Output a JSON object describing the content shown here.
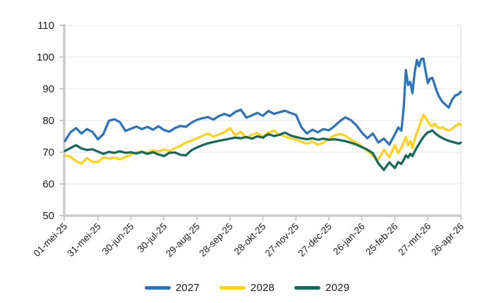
{
  "chart": {
    "background": "#ffffff",
    "axis_color": "#cccccc",
    "tick_color": "#c9c9c9",
    "grid_color": "#e4e4e4",
    "text_color": "#1c1c1c"
  },
  "chart_data": {
    "type": "line",
    "title": "",
    "xlabel": "",
    "ylabel": "",
    "grid": "horizontal",
    "legend_position": "bottom",
    "y_axis": {
      "min": 50,
      "max": 110,
      "ticks": [
        50,
        60,
        70,
        80,
        90,
        100,
        110
      ]
    },
    "x_axis": {
      "tick_labels": [
        "01-mei-25",
        "31-mei-25",
        "30-jun-25",
        "30-jul-25",
        "29-aug-25",
        "28-sep-25",
        "28-okt-25",
        "27-nov-25",
        "27-dec-25",
        "26-jan-26",
        "25-feb-26",
        "27-mrt-26",
        "26-apr-26"
      ],
      "tick_days": [
        0,
        30,
        60,
        90,
        120,
        150,
        180,
        210,
        240,
        270,
        300,
        330,
        360
      ],
      "unit": "days since 01-mei-25"
    },
    "x_days": [
      0,
      5,
      10,
      15,
      20,
      25,
      30,
      35,
      40,
      45,
      50,
      55,
      60,
      65,
      70,
      75,
      80,
      85,
      90,
      95,
      100,
      105,
      110,
      115,
      120,
      125,
      130,
      135,
      140,
      145,
      150,
      155,
      160,
      165,
      170,
      175,
      180,
      185,
      190,
      195,
      200,
      205,
      210,
      215,
      220,
      225,
      230,
      235,
      240,
      245,
      250,
      255,
      260,
      265,
      270,
      275,
      280,
      285,
      290,
      295,
      300,
      303,
      306,
      308,
      310,
      312,
      314,
      316,
      318,
      320,
      322,
      324,
      326,
      328,
      330,
      332,
      334,
      336,
      338,
      340,
      343,
      346,
      349,
      352,
      355,
      358,
      360
    ],
    "series": [
      {
        "name": "2027",
        "color": "#2E74BB",
        "values": [
          73.5,
          76.3,
          77.6,
          75.9,
          77.3,
          76.4,
          74.1,
          75.7,
          79.9,
          80.4,
          79.5,
          76.7,
          77.4,
          78.1,
          77.3,
          78.0,
          77.1,
          78.2,
          77.0,
          76.5,
          77.6,
          78.3,
          78.0,
          79.3,
          80.2,
          80.7,
          81.1,
          80.3,
          81.4,
          82.1,
          81.4,
          82.7,
          83.4,
          80.9,
          81.6,
          82.4,
          81.5,
          83.0,
          82.1,
          82.6,
          83.1,
          82.4,
          81.8,
          77.9,
          75.9,
          77.1,
          76.3,
          77.3,
          76.9,
          78.2,
          79.8,
          81.0,
          80.1,
          78.5,
          76.2,
          74.4,
          75.9,
          73.1,
          74.3,
          72.4,
          75.6,
          77.8,
          76.8,
          84.0,
          95.9,
          91.2,
          92.2,
          88.6,
          95.0,
          99.1,
          97.1,
          99.4,
          99.5,
          95.5,
          91.8,
          93.2,
          93.5,
          91.5,
          89.3,
          87.7,
          86.0,
          85.0,
          84.1,
          86.5,
          87.9,
          88.3,
          89.1
        ]
      },
      {
        "name": "2028",
        "color": "#FFD21F",
        "values": [
          69.0,
          68.6,
          67.2,
          66.4,
          68.2,
          67.0,
          66.9,
          68.4,
          68.0,
          68.3,
          67.8,
          68.5,
          69.3,
          69.9,
          70.3,
          69.8,
          70.6,
          70.2,
          70.9,
          70.4,
          71.3,
          72.0,
          73.1,
          73.6,
          74.4,
          75.2,
          75.9,
          74.9,
          75.6,
          76.3,
          77.6,
          75.4,
          76.4,
          74.6,
          75.5,
          76.1,
          74.9,
          76.3,
          76.8,
          75.6,
          75.0,
          74.4,
          74.0,
          73.3,
          72.7,
          73.3,
          72.4,
          73.0,
          74.2,
          75.3,
          75.8,
          75.2,
          74.0,
          73.0,
          71.8,
          70.4,
          68.9,
          67.6,
          70.8,
          68.4,
          72.3,
          69.7,
          71.5,
          73.2,
          74.8,
          72.2,
          73.6,
          71.3,
          74.0,
          76.2,
          78.0,
          80.0,
          81.8,
          81.0,
          79.6,
          78.6,
          78.1,
          79.0,
          78.2,
          77.6,
          77.9,
          77.2,
          76.9,
          77.4,
          78.3,
          79.0,
          78.6
        ]
      },
      {
        "name": "2029",
        "color": "#17695A",
        "values": [
          70.4,
          71.3,
          72.2,
          71.2,
          70.7,
          70.9,
          70.2,
          69.5,
          70.1,
          69.8,
          70.3,
          69.8,
          70.0,
          69.6,
          70.1,
          69.5,
          70.0,
          69.3,
          68.8,
          69.8,
          69.9,
          69.2,
          69.0,
          70.6,
          71.5,
          72.2,
          72.8,
          73.2,
          73.6,
          73.9,
          74.3,
          74.6,
          74.4,
          74.8,
          74.3,
          75.0,
          74.6,
          75.7,
          75.1,
          75.5,
          76.2,
          75.3,
          74.8,
          74.4,
          74.1,
          74.4,
          73.9,
          74.3,
          73.9,
          74.1,
          73.8,
          73.5,
          73.0,
          72.4,
          71.6,
          70.8,
          69.7,
          66.5,
          64.4,
          66.8,
          65.0,
          66.9,
          66.3,
          67.6,
          69.0,
          68.3,
          69.5,
          68.8,
          70.2,
          71.5,
          72.6,
          73.8,
          74.8,
          75.6,
          76.3,
          76.5,
          76.9,
          76.2,
          75.6,
          75.1,
          74.5,
          74.0,
          73.6,
          73.3,
          73.0,
          72.7,
          73.0
        ]
      }
    ]
  }
}
